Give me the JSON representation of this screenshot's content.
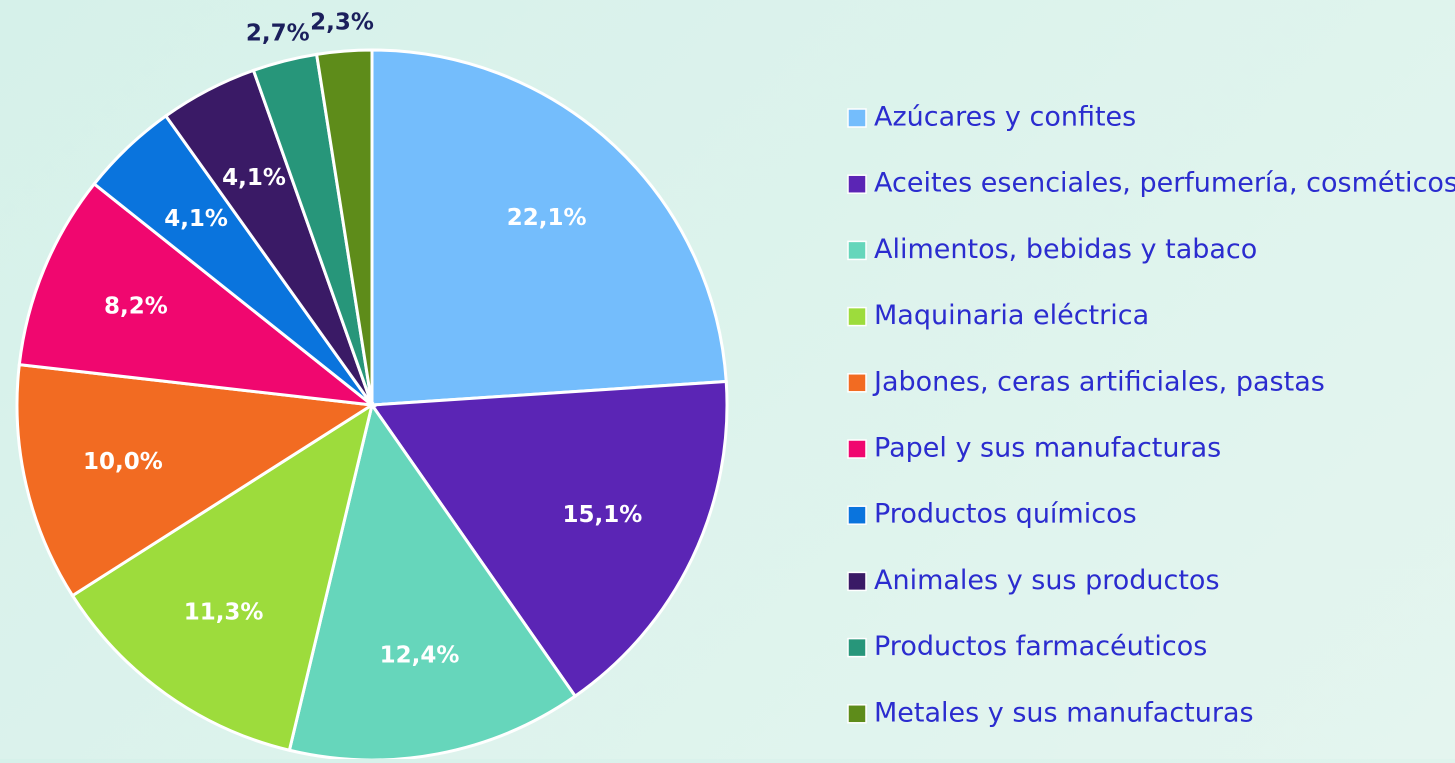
{
  "chart_data": {
    "type": "pie",
    "categories": [
      "Azúcares y confites",
      "Aceites esenciales, perfumería, cosméticos",
      "Alimentos, bebidas y tabaco",
      "Maquinaria eléctrica",
      "Jabones, ceras artificiales, pastas",
      "Papel y sus manufacturas",
      "Productos químicos",
      "Animales y sus productos",
      "Productos farmacéuticos",
      "Metales y sus manufacturas"
    ],
    "values": [
      22.1,
      15.1,
      12.4,
      11.3,
      10.0,
      8.2,
      4.1,
      4.1,
      2.7,
      2.3
    ],
    "value_labels": [
      "22,1%",
      "15,1%",
      "12,4%",
      "11,3%",
      "10,0%",
      "8,2%",
      "4,1%",
      "4,1%",
      "2,7%",
      "2,3%"
    ],
    "colors": [
      "#74bdfc",
      "#5b25b5",
      "#66d6bb",
      "#9ddc3c",
      "#f26b22",
      "#f0076f",
      "#0a74dd",
      "#3a1a66",
      "#27967a",
      "#5e8c1a"
    ],
    "legend": "right"
  }
}
